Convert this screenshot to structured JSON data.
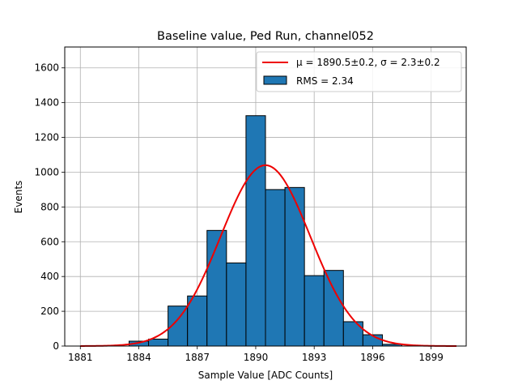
{
  "chart_data": {
    "type": "bar",
    "title": "Baseline value, Ped Run, channel052",
    "xlabel": "Sample Value [ADC Counts]",
    "ylabel": "Events",
    "xlim": [
      1880.2,
      1900.8
    ],
    "ylim": [
      0,
      1720
    ],
    "grid": true,
    "x_ticks": [
      1881,
      1884,
      1887,
      1890,
      1893,
      1896,
      1899
    ],
    "y_ticks": [
      0,
      200,
      400,
      600,
      800,
      1000,
      1200,
      1400,
      1600
    ],
    "bins": [
      {
        "start": 1883.5,
        "end": 1884.5,
        "count": 28
      },
      {
        "start": 1884.5,
        "end": 1885.5,
        "count": 40
      },
      {
        "start": 1885.5,
        "end": 1886.5,
        "count": 230
      },
      {
        "start": 1886.5,
        "end": 1887.5,
        "count": 288
      },
      {
        "start": 1887.5,
        "end": 1888.5,
        "count": 665
      },
      {
        "start": 1888.5,
        "end": 1889.5,
        "count": 478
      },
      {
        "start": 1889.5,
        "end": 1890.5,
        "count": 1325
      },
      {
        "start": 1890.5,
        "end": 1891.5,
        "count": 900
      },
      {
        "start": 1891.5,
        "end": 1892.5,
        "count": 912
      },
      {
        "start": 1892.5,
        "end": 1893.5,
        "count": 405
      },
      {
        "start": 1893.5,
        "end": 1894.5,
        "count": 435
      },
      {
        "start": 1894.5,
        "end": 1895.5,
        "count": 140
      },
      {
        "start": 1895.5,
        "end": 1896.5,
        "count": 65
      },
      {
        "start": 1896.5,
        "end": 1897.5,
        "count": 10
      }
    ],
    "bar_color": "#1f77b4",
    "fit": {
      "type": "gaussian",
      "mu": 1890.5,
      "sigma": 2.3,
      "amplitude": 1040,
      "x_range": [
        1881,
        1900.3
      ],
      "color": "#ee0000"
    },
    "legend": {
      "position": "top-right",
      "entries": [
        {
          "kind": "line",
          "label": "μ = 1890.5±0.2, σ = 2.3±0.2",
          "color": "#ee0000"
        },
        {
          "kind": "patch",
          "label": "RMS = 2.34",
          "color": "#1f77b4"
        }
      ]
    }
  }
}
